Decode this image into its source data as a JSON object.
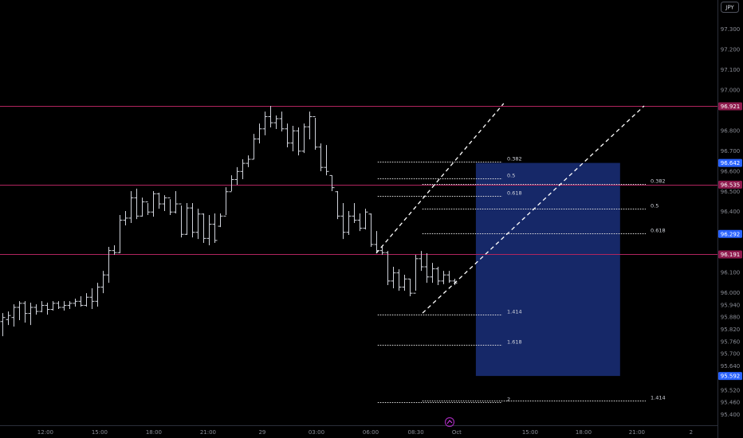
{
  "chart_data": {
    "type": "ohlc",
    "currency_button": "JPY",
    "bar_color": "#cfd2da",
    "xlim": [
      -2.51,
      37.19
    ],
    "ylim": [
      95.349,
      97.445
    ],
    "xticks": [
      {
        "value": 0,
        "label": "12:00"
      },
      {
        "value": 3,
        "label": "15:00"
      },
      {
        "value": 6,
        "label": "18:00"
      },
      {
        "value": 9,
        "label": "21:00"
      },
      {
        "value": 12,
        "label": "29"
      },
      {
        "value": 15,
        "label": "03:00"
      },
      {
        "value": 18,
        "label": "06:00"
      },
      {
        "value": 20.5,
        "label": "08:30"
      },
      {
        "value": 22.76,
        "label": "Oct"
      },
      {
        "value": 26.82,
        "label": "15:00"
      },
      {
        "value": 29.78,
        "label": "18:00"
      },
      {
        "value": 32.73,
        "label": "21:00"
      },
      {
        "value": 35.73,
        "label": "2"
      }
    ],
    "yticks": [
      {
        "value": 97.3,
        "label": "97.300"
      },
      {
        "value": 97.2,
        "label": "97.200"
      },
      {
        "value": 97.1,
        "label": "97.100"
      },
      {
        "value": 97.0,
        "label": "97.000"
      },
      {
        "value": 96.8,
        "label": "96.800"
      },
      {
        "value": 96.7,
        "label": "96.700"
      },
      {
        "value": 96.6,
        "label": "96.600"
      },
      {
        "value": 96.5,
        "label": "96.500"
      },
      {
        "value": 96.4,
        "label": "96.400"
      },
      {
        "value": 96.1,
        "label": "96.100"
      },
      {
        "value": 96.0,
        "label": "96.000"
      },
      {
        "value": 95.94,
        "label": "95.940"
      },
      {
        "value": 95.88,
        "label": "95.880"
      },
      {
        "value": 95.82,
        "label": "95.820"
      },
      {
        "value": 95.76,
        "label": "95.760"
      },
      {
        "value": 95.7,
        "label": "95.700"
      },
      {
        "value": 95.64,
        "label": "95.640"
      },
      {
        "value": 95.52,
        "label": "95.520"
      },
      {
        "value": 95.46,
        "label": "95.460"
      },
      {
        "value": 95.4,
        "label": "95.400"
      }
    ],
    "x": [
      -2.38,
      -2.07,
      -1.76,
      -1.45,
      -1.15,
      -0.84,
      -0.53,
      -0.22,
      0.09,
      0.4,
      0.71,
      1.02,
      1.32,
      1.63,
      1.94,
      2.25,
      2.56,
      2.87,
      3.18,
      3.49,
      3.79,
      4.1,
      4.41,
      4.72,
      5.03,
      5.34,
      5.65,
      5.96,
      6.26,
      6.57,
      6.88,
      7.19,
      7.5,
      7.81,
      8.12,
      8.43,
      8.73,
      9.04,
      9.35,
      9.66,
      9.97,
      10.28,
      10.59,
      10.9,
      11.21,
      11.51,
      11.82,
      12.13,
      12.44,
      12.75,
      13.06,
      13.37,
      13.68,
      13.98,
      14.29,
      14.6,
      14.91,
      15.22,
      15.53,
      15.84,
      16.15,
      16.45,
      16.76,
      17.07,
      17.38,
      17.69,
      18.0,
      18.31,
      18.62,
      18.92,
      19.23,
      19.54,
      19.85,
      20.16,
      20.47,
      20.78,
      21.09,
      21.39,
      21.7,
      22.01,
      22.32,
      22.63
    ],
    "open": [
      95.86,
      95.87,
      95.88,
      95.93,
      95.95,
      95.9,
      95.93,
      95.91,
      95.94,
      95.92,
      95.95,
      95.93,
      95.94,
      95.95,
      95.96,
      95.94,
      95.98,
      95.96,
      96.03,
      96.09,
      96.21,
      96.2,
      96.36,
      96.37,
      96.47,
      96.38,
      96.45,
      96.4,
      96.49,
      96.44,
      96.47,
      96.4,
      96.44,
      96.29,
      96.42,
      96.3,
      96.39,
      96.27,
      96.34,
      96.33,
      96.38,
      96.5,
      96.56,
      96.6,
      96.64,
      96.66,
      96.76,
      96.81,
      96.87,
      96.84,
      96.86,
      96.81,
      96.74,
      96.8,
      96.7,
      96.82,
      96.87,
      96.72,
      96.62,
      96.58,
      96.5,
      96.38,
      96.3,
      96.38,
      96.36,
      96.32,
      96.39,
      96.24,
      96.21,
      96.2,
      96.06,
      96.1,
      96.03,
      96.07,
      96.0,
      96.17,
      96.13,
      96.08,
      96.12,
      96.06,
      96.09,
      96.06
    ],
    "high": [
      95.902,
      95.91,
      95.945,
      95.961,
      95.961,
      95.953,
      95.945,
      95.961,
      95.953,
      95.961,
      95.961,
      95.961,
      95.961,
      95.973,
      95.985,
      96.0,
      96.024,
      96.051,
      96.11,
      96.228,
      96.236,
      96.385,
      96.405,
      96.503,
      96.515,
      96.471,
      96.444,
      96.503,
      96.495,
      96.483,
      96.463,
      96.503,
      96.432,
      96.444,
      96.444,
      96.416,
      96.393,
      96.385,
      96.393,
      96.393,
      96.522,
      96.581,
      96.621,
      96.66,
      96.679,
      96.785,
      96.836,
      96.895,
      96.923,
      96.876,
      96.895,
      96.836,
      96.825,
      96.817,
      96.836,
      96.895,
      96.864,
      96.738,
      96.73,
      96.581,
      96.503,
      96.444,
      96.405,
      96.444,
      96.393,
      96.416,
      96.393,
      96.306,
      96.228,
      96.208,
      96.13,
      96.118,
      96.091,
      96.071,
      96.189,
      96.208,
      96.197,
      96.149,
      96.13,
      96.11,
      96.11,
      96.071
    ],
    "low": [
      95.788,
      95.843,
      95.835,
      95.867,
      95.855,
      95.843,
      95.894,
      95.906,
      95.894,
      95.914,
      95.922,
      95.914,
      95.922,
      95.934,
      95.934,
      95.934,
      95.922,
      95.934,
      96.0,
      96.051,
      96.189,
      96.197,
      96.334,
      96.346,
      96.365,
      96.377,
      96.385,
      96.377,
      96.416,
      96.405,
      96.385,
      96.393,
      96.275,
      96.287,
      96.275,
      96.267,
      96.248,
      96.236,
      96.248,
      96.326,
      96.385,
      96.503,
      96.534,
      96.562,
      96.621,
      96.66,
      96.738,
      96.778,
      96.817,
      96.809,
      96.797,
      96.719,
      96.699,
      96.679,
      96.691,
      96.758,
      96.707,
      96.601,
      96.581,
      96.503,
      96.365,
      96.267,
      96.287,
      96.346,
      96.306,
      96.314,
      96.228,
      96.197,
      96.189,
      96.04,
      96.024,
      96.012,
      96.012,
      95.985,
      96.012,
      96.11,
      96.051,
      96.051,
      96.04,
      96.044,
      96.051,
      96.04
    ],
    "close": [
      95.88,
      95.89,
      95.93,
      95.95,
      95.9,
      95.93,
      95.91,
      95.94,
      95.92,
      95.95,
      95.93,
      95.94,
      95.95,
      95.96,
      95.94,
      95.98,
      95.96,
      96.03,
      96.09,
      96.21,
      96.2,
      96.36,
      96.37,
      96.47,
      96.38,
      96.45,
      96.4,
      96.49,
      96.44,
      96.47,
      96.4,
      96.44,
      96.29,
      96.42,
      96.3,
      96.39,
      96.27,
      96.34,
      96.26,
      96.38,
      96.5,
      96.56,
      96.6,
      96.64,
      96.66,
      96.76,
      96.81,
      96.87,
      96.84,
      96.86,
      96.81,
      96.74,
      96.8,
      96.7,
      96.82,
      96.87,
      96.72,
      96.62,
      96.6,
      96.52,
      96.38,
      96.3,
      96.38,
      96.36,
      96.32,
      96.4,
      96.24,
      96.21,
      96.2,
      96.06,
      96.1,
      96.03,
      96.07,
      96.0,
      96.17,
      96.13,
      96.08,
      96.12,
      96.06,
      96.09,
      96.06,
      96.05
    ],
    "hlines": [
      {
        "value": 96.921,
        "label": "96.921"
      },
      {
        "value": 96.535,
        "label": "96.535"
      },
      {
        "value": 96.191,
        "label": "96.191"
      }
    ],
    "hline_color": "#b0245e",
    "tag_color": "#8e1a4d",
    "marker_tags": [
      {
        "value": 96.292,
        "label": "96.292"
      }
    ],
    "box": {
      "x": [
        23.82,
        31.8
      ],
      "top": {
        "value": 96.642,
        "label": "96.642"
      },
      "bottom": {
        "value": 95.592,
        "label": "95.592"
      },
      "color": "#1a2f7a"
    },
    "box_tag_color": "#2962ff",
    "trendlines": [
      {
        "x": [
          18.31,
          25.36
        ],
        "y": [
          96.197,
          96.935
        ]
      },
      {
        "x": [
          20.87,
          33.13
        ],
        "y": [
          95.902,
          96.923
        ]
      }
    ],
    "fib_sets": [
      {
        "x": [
          18.39,
          25.28
        ],
        "levels": [
          0.382,
          0.5,
          0.618,
          1.414,
          1.618,
          2
        ],
        "prices": [
          96.648,
          96.564,
          96.479,
          95.894,
          95.745,
          95.462
        ]
      },
      {
        "x": [
          20.86,
          33.22
        ],
        "levels": [
          0.382,
          0.5,
          0.618,
          1.414
        ],
        "prices": [
          96.538,
          96.416,
          96.295,
          95.47
        ]
      }
    ]
  }
}
